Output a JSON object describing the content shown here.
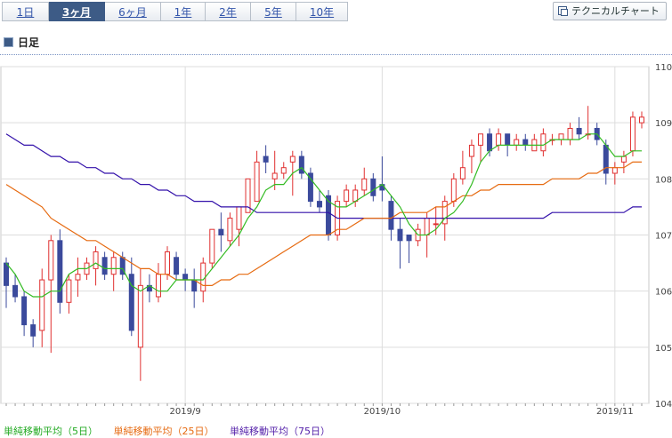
{
  "tabs": [
    {
      "label": "1日",
      "active": false
    },
    {
      "label": "3ヶ月",
      "active": true
    },
    {
      "label": "6ヶ月",
      "active": false
    },
    {
      "label": "1年",
      "active": false
    },
    {
      "label": "2年",
      "active": false
    },
    {
      "label": "5年",
      "active": false
    },
    {
      "label": "10年",
      "active": false
    }
  ],
  "technical_button": "テクニカルチャート",
  "section_title": "日足",
  "legend": [
    {
      "label": "単純移動平均（5日）",
      "color": "#22aa22"
    },
    {
      "label": "単純移動平均（25日）",
      "color": "#e66a10"
    },
    {
      "label": "単純移動平均（75日）",
      "color": "#5522aa"
    }
  ],
  "colors": {
    "up": "#e03030",
    "down": "#3b4a9c",
    "ma5": "#33bb22",
    "ma25": "#e66a10",
    "ma75": "#3311aa"
  },
  "chart_data": {
    "type": "candlestick",
    "ylim": [
      104,
      110
    ],
    "yticks": [
      104,
      105,
      106,
      107,
      108,
      109,
      110
    ],
    "xticks": [
      {
        "label": "2019/9",
        "index": 20
      },
      {
        "label": "2019/10",
        "index": 42
      },
      {
        "label": "2019/11",
        "index": 68
      }
    ],
    "ohlc": [
      [
        106.5,
        106.6,
        105.7,
        106.1
      ],
      [
        106.1,
        106.3,
        105.8,
        105.9
      ],
      [
        105.9,
        106.0,
        105.2,
        105.4
      ],
      [
        105.4,
        105.5,
        105.0,
        105.2
      ],
      [
        105.3,
        106.4,
        105.0,
        106.2
      ],
      [
        106.2,
        107.0,
        104.9,
        106.9
      ],
      [
        106.9,
        107.1,
        105.6,
        105.8
      ],
      [
        105.8,
        106.3,
        105.6,
        106.2
      ],
      [
        106.2,
        106.6,
        105.9,
        106.3
      ],
      [
        106.3,
        106.6,
        106.2,
        106.5
      ],
      [
        106.4,
        106.8,
        106.1,
        106.7
      ],
      [
        106.6,
        106.7,
        106.2,
        106.3
      ],
      [
        106.3,
        106.7,
        106.0,
        106.6
      ],
      [
        106.6,
        106.7,
        106.2,
        106.3
      ],
      [
        106.3,
        106.6,
        105.2,
        105.3
      ],
      [
        105.0,
        106.4,
        104.4,
        106.1
      ],
      [
        106.1,
        106.3,
        105.8,
        106.0
      ],
      [
        105.9,
        106.5,
        105.8,
        106.3
      ],
      [
        106.3,
        106.8,
        106.2,
        106.7
      ],
      [
        106.6,
        106.7,
        106.2,
        106.3
      ],
      [
        106.3,
        106.4,
        106.0,
        106.2
      ],
      [
        106.2,
        106.4,
        105.7,
        106.0
      ],
      [
        106.0,
        106.6,
        105.8,
        106.5
      ],
      [
        106.5,
        107.1,
        106.4,
        107.1
      ],
      [
        107.1,
        107.4,
        106.7,
        107.0
      ],
      [
        106.9,
        107.4,
        106.8,
        107.3
      ],
      [
        107.1,
        107.5,
        106.8,
        107.5
      ],
      [
        107.4,
        108.0,
        107.4,
        108.0
      ],
      [
        107.6,
        108.5,
        107.6,
        108.3
      ],
      [
        108.4,
        108.6,
        108.1,
        108.3
      ],
      [
        108.0,
        108.5,
        107.8,
        108.1
      ],
      [
        108.1,
        108.3,
        108.0,
        108.2
      ],
      [
        108.3,
        108.5,
        107.7,
        108.4
      ],
      [
        108.4,
        108.5,
        108.0,
        108.1
      ],
      [
        108.1,
        108.2,
        107.5,
        107.6
      ],
      [
        107.6,
        107.8,
        107.4,
        107.5
      ],
      [
        107.7,
        107.8,
        106.9,
        107.0
      ],
      [
        107.0,
        107.7,
        106.9,
        107.6
      ],
      [
        107.6,
        107.9,
        107.5,
        107.8
      ],
      [
        107.6,
        107.9,
        107.5,
        107.8
      ],
      [
        107.8,
        108.2,
        107.7,
        108.0
      ],
      [
        108.0,
        108.1,
        107.6,
        107.7
      ],
      [
        107.9,
        108.4,
        107.6,
        107.8
      ],
      [
        107.6,
        107.7,
        106.9,
        107.1
      ],
      [
        107.1,
        107.3,
        106.4,
        106.9
      ],
      [
        107.0,
        107.0,
        106.5,
        106.9
      ],
      [
        106.9,
        107.2,
        106.8,
        107.1
      ],
      [
        107.0,
        107.4,
        106.6,
        107.3
      ],
      [
        107.2,
        107.5,
        107.0,
        107.2
      ],
      [
        107.2,
        107.7,
        106.9,
        107.6
      ],
      [
        107.6,
        108.1,
        107.5,
        108.0
      ],
      [
        108.0,
        108.5,
        107.9,
        108.2
      ],
      [
        108.4,
        108.7,
        108.1,
        108.6
      ],
      [
        108.6,
        108.8,
        108.3,
        108.8
      ],
      [
        108.8,
        108.9,
        108.4,
        108.5
      ],
      [
        108.6,
        108.9,
        108.5,
        108.8
      ],
      [
        108.8,
        108.8,
        108.4,
        108.6
      ],
      [
        108.6,
        108.8,
        108.5,
        108.7
      ],
      [
        108.7,
        108.8,
        108.5,
        108.6
      ],
      [
        108.5,
        108.8,
        108.5,
        108.7
      ],
      [
        108.5,
        108.9,
        108.4,
        108.8
      ],
      [
        108.7,
        108.8,
        108.6,
        108.7
      ],
      [
        108.7,
        108.8,
        108.6,
        108.8
      ],
      [
        108.7,
        109.0,
        108.6,
        108.9
      ],
      [
        108.9,
        109.1,
        108.7,
        108.8
      ],
      [
        108.8,
        109.3,
        108.7,
        108.8
      ],
      [
        108.9,
        109.0,
        108.6,
        108.7
      ],
      [
        108.6,
        108.7,
        107.9,
        108.1
      ],
      [
        108.1,
        108.3,
        107.9,
        108.2
      ],
      [
        108.3,
        108.5,
        108.1,
        108.4
      ],
      [
        108.5,
        109.2,
        108.4,
        109.1
      ],
      [
        109.0,
        109.2,
        108.9,
        109.1
      ]
    ],
    "ma5": [
      106.5,
      106.3,
      106.0,
      105.9,
      105.9,
      106.0,
      106.0,
      106.3,
      106.4,
      106.4,
      106.5,
      106.4,
      106.4,
      106.4,
      106.1,
      106.0,
      106.1,
      106.0,
      106.0,
      106.2,
      106.2,
      106.2,
      106.2,
      106.4,
      106.6,
      106.8,
      107.0,
      107.3,
      107.5,
      107.8,
      107.9,
      107.9,
      108.1,
      108.2,
      108.0,
      107.8,
      107.6,
      107.5,
      107.5,
      107.6,
      107.7,
      107.8,
      107.9,
      107.7,
      107.5,
      107.2,
      107.0,
      107.0,
      107.1,
      107.3,
      107.4,
      107.6,
      107.9,
      108.3,
      108.5,
      108.6,
      108.6,
      108.6,
      108.6,
      108.6,
      108.6,
      108.7,
      108.7,
      108.7,
      108.7,
      108.8,
      108.8,
      108.6,
      108.4,
      108.4,
      108.5,
      108.5
    ],
    "ma25": [
      107.9,
      107.8,
      107.7,
      107.6,
      107.5,
      107.3,
      107.2,
      107.1,
      107.0,
      106.9,
      106.9,
      106.8,
      106.7,
      106.6,
      106.5,
      106.4,
      106.4,
      106.3,
      106.3,
      106.2,
      106.2,
      106.2,
      106.1,
      106.1,
      106.2,
      106.2,
      106.3,
      106.3,
      106.4,
      106.5,
      106.6,
      106.7,
      106.8,
      106.9,
      107.0,
      107.0,
      107.0,
      107.1,
      107.1,
      107.2,
      107.3,
      107.3,
      107.3,
      107.3,
      107.4,
      107.4,
      107.4,
      107.4,
      107.5,
      107.5,
      107.6,
      107.7,
      107.7,
      107.8,
      107.8,
      107.9,
      107.9,
      107.9,
      107.9,
      107.9,
      107.9,
      108.0,
      108.0,
      108.0,
      108.0,
      108.1,
      108.1,
      108.2,
      108.2,
      108.2,
      108.3,
      108.3
    ],
    "ma75": [
      108.8,
      108.7,
      108.6,
      108.6,
      108.5,
      108.4,
      108.4,
      108.3,
      108.3,
      108.2,
      108.2,
      108.1,
      108.1,
      108.0,
      108.0,
      107.9,
      107.9,
      107.8,
      107.8,
      107.7,
      107.7,
      107.6,
      107.6,
      107.6,
      107.5,
      107.5,
      107.5,
      107.5,
      107.4,
      107.4,
      107.4,
      107.4,
      107.4,
      107.4,
      107.4,
      107.4,
      107.4,
      107.3,
      107.3,
      107.3,
      107.3,
      107.3,
      107.3,
      107.3,
      107.3,
      107.3,
      107.3,
      107.3,
      107.3,
      107.3,
      107.3,
      107.3,
      107.3,
      107.3,
      107.3,
      107.3,
      107.3,
      107.3,
      107.3,
      107.3,
      107.3,
      107.4,
      107.4,
      107.4,
      107.4,
      107.4,
      107.4,
      107.4,
      107.4,
      107.4,
      107.5,
      107.5
    ]
  }
}
